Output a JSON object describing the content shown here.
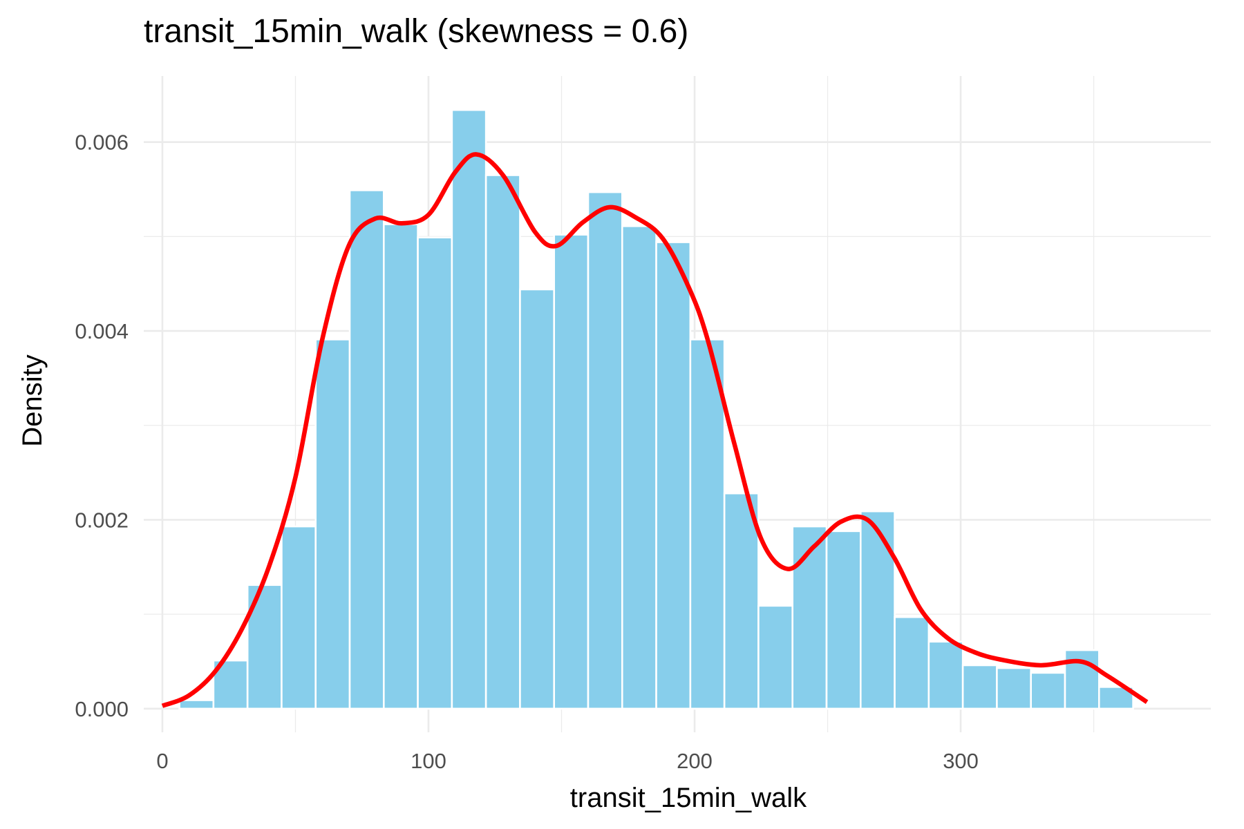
{
  "chart_data": {
    "type": "bar",
    "title": "transit_15min_walk (skewness = 0.6)",
    "xlabel": "transit_15min_walk",
    "ylabel": "Density",
    "xlim": [
      -7,
      394
    ],
    "ylim": [
      -0.00025,
      0.0067
    ],
    "x_ticks": [
      0,
      100,
      200,
      300
    ],
    "x_tick_labels": [
      "0",
      "100",
      "200",
      "300"
    ],
    "y_ticks": [
      0.0,
      0.002,
      0.004,
      0.006
    ],
    "y_tick_labels": [
      "0.000",
      "0.002",
      "0.004",
      "0.006"
    ],
    "grid": true,
    "bin_width": 12.8,
    "bin_centers": [
      12.8,
      25.6,
      38.4,
      51.2,
      64.0,
      76.8,
      89.6,
      102.4,
      115.2,
      128.0,
      140.8,
      153.6,
      166.4,
      179.2,
      192.0,
      204.8,
      217.6,
      230.4,
      243.2,
      256.0,
      268.8,
      281.6,
      294.4,
      307.2,
      320.0,
      332.8,
      345.6,
      358.4
    ],
    "values": [
      9e-05,
      0.00051,
      0.00131,
      0.00193,
      0.00391,
      0.00549,
      0.00513,
      0.00499,
      0.00634,
      0.00565,
      0.00444,
      0.00502,
      0.00547,
      0.00511,
      0.00494,
      0.00391,
      0.00228,
      0.00109,
      0.00193,
      0.00188,
      0.00209,
      0.00097,
      0.00071,
      0.00046,
      0.00043,
      0.00038,
      0.00062,
      0.00023
    ],
    "density_curve": {
      "x": [
        0,
        10,
        20,
        30,
        40,
        50,
        60,
        70,
        80,
        90,
        100,
        110,
        118,
        128,
        140,
        148,
        158,
        168,
        178,
        188,
        198,
        205,
        215,
        225,
        235,
        245,
        255,
        265,
        275,
        285,
        295,
        305,
        315,
        330,
        345,
        355,
        370
      ],
      "y": [
        3e-05,
        0.00014,
        0.0004,
        0.00085,
        0.0015,
        0.00245,
        0.0039,
        0.0049,
        0.00519,
        0.00514,
        0.00523,
        0.00568,
        0.00587,
        0.00565,
        0.00505,
        0.0049,
        0.00515,
        0.00531,
        0.0052,
        0.00498,
        0.00445,
        0.0039,
        0.0028,
        0.0018,
        0.00148,
        0.00172,
        0.00198,
        0.002,
        0.0016,
        0.00105,
        0.00075,
        0.0006,
        0.00052,
        0.00046,
        0.0005,
        0.00035,
        7e-05
      ]
    },
    "bar_color": "#87CEEB",
    "bar_edge_color": "#ffffff",
    "line_color": "#ff0000",
    "grid_color": "#ebebeb"
  }
}
